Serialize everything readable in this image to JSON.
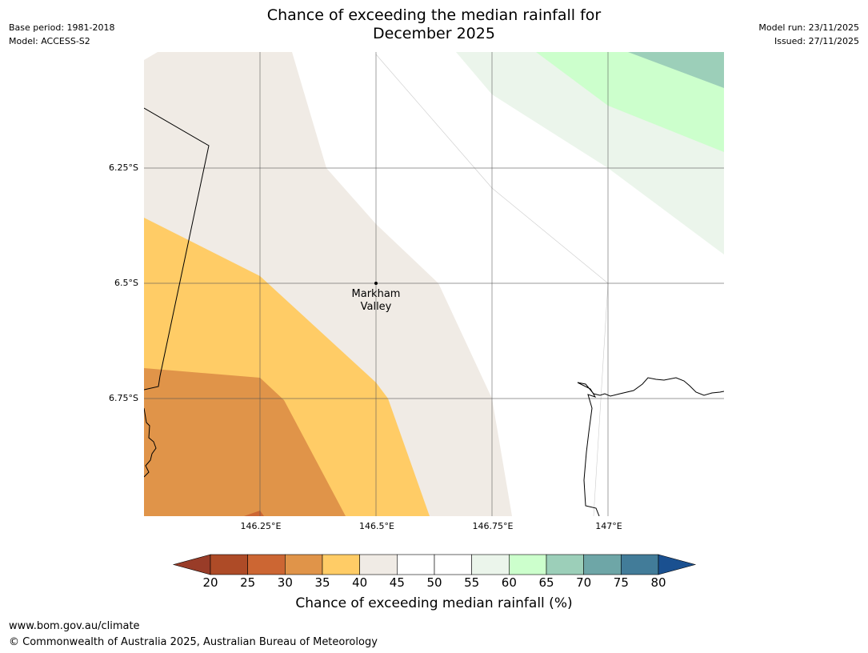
{
  "title": {
    "line1": "Chance of exceeding the median rainfall for",
    "line2": "December 2025"
  },
  "meta_left": {
    "base_period": "Base period: 1981-2018",
    "model": "Model: ACCESS-S2"
  },
  "meta_right": {
    "model_run": "Model run: 23/11/2025",
    "issued": "Issued: 27/11/2025"
  },
  "map": {
    "lat_labels": [
      "6.25°S",
      "6.5°S",
      "6.75°S"
    ],
    "lon_labels": [
      "146.25°E",
      "146.5°E",
      "146.75°E",
      "147°E"
    ],
    "place": {
      "name_line1": "Markham",
      "name_line2": "Valley"
    }
  },
  "colorbar": {
    "ticks": [
      "20",
      "25",
      "30",
      "35",
      "40",
      "45",
      "50",
      "55",
      "60",
      "65",
      "70",
      "75",
      "80"
    ],
    "colors": [
      "#ae4b27",
      "#cc6633",
      "#e09449",
      "#ffcc66",
      "#f0ebe5",
      "#ffffff",
      "#ffffff",
      "#ebf5eb",
      "#ccffcc",
      "#9ccfb9",
      "#6ea6a7",
      "#427c99"
    ],
    "under_color": "#993c28",
    "over_color": "#1a5090",
    "label": "Chance of exceeding median rainfall (%)"
  },
  "footer": {
    "url": "www.bom.gov.au/climate",
    "copyright": "© Commonwealth of Australia 2025, Australian Bureau of Meteorology"
  }
}
